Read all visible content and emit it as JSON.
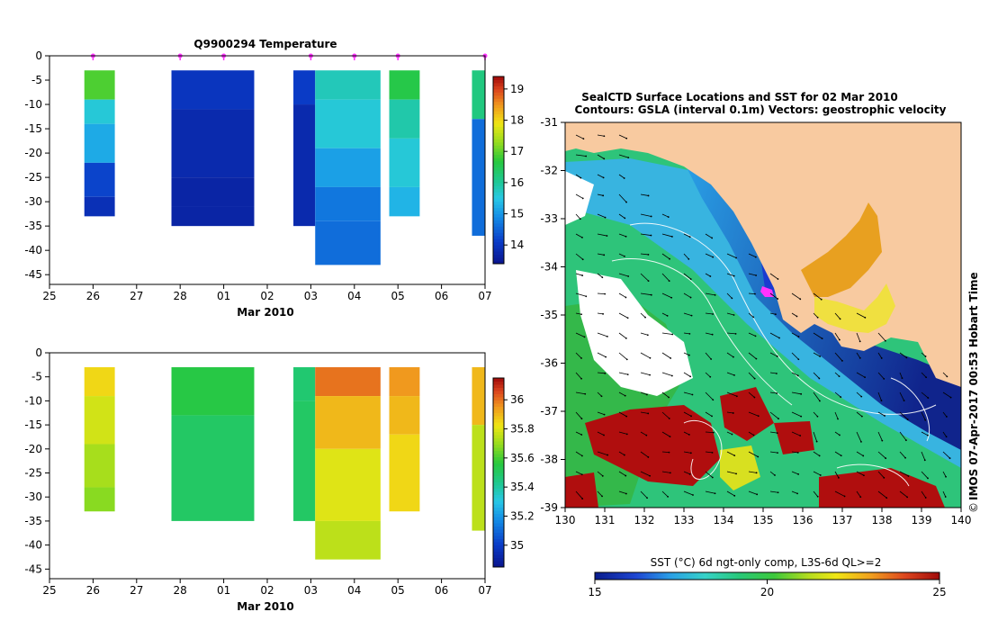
{
  "chart_data": [
    {
      "type": "heatmap",
      "title": "Q9900294  Temperature",
      "xlabel": "Mar 2010",
      "x_ticks": [
        "25",
        "26",
        "27",
        "28",
        "01",
        "02",
        "03",
        "04",
        "05",
        "06",
        "07"
      ],
      "y_ticks": [
        "0",
        "-5",
        "-10",
        "-15",
        "-20",
        "-25",
        "-30",
        "-35",
        "-40",
        "-45"
      ],
      "ylim": [
        -47,
        0
      ],
      "profile_marker_positions": [
        26.0,
        28.0,
        29.0,
        31.0,
        32.0,
        33.0,
        35.0
      ],
      "colorbar": {
        "min": 13.4,
        "max": 19.4,
        "ticks": [
          "14",
          "15",
          "16",
          "17",
          "18",
          "19"
        ]
      },
      "profiles": [
        {
          "x0": 25.8,
          "x1": 26.5,
          "layers": [
            [
              -3,
              -9,
              16.9
            ],
            [
              -9,
              -14,
              15.6
            ],
            [
              -14,
              -22,
              15.2
            ],
            [
              -22,
              -29,
              14.2
            ],
            [
              -29,
              -33,
              13.9
            ]
          ]
        },
        {
          "x0": 27.8,
          "x1": 29.7,
          "layers": [
            [
              -3,
              -11,
              14.0
            ],
            [
              -11,
              -25,
              13.8
            ],
            [
              -25,
              -31,
              13.7
            ],
            [
              -31,
              -35,
              13.7
            ]
          ]
        },
        {
          "x0": 30.6,
          "x1": 31.1,
          "layers": [
            [
              -3,
              -10,
              14.1
            ],
            [
              -10,
              -35,
              13.8
            ]
          ]
        },
        {
          "x0": 31.1,
          "x1": 32.6,
          "layers": [
            [
              -3,
              -9,
              15.8
            ],
            [
              -9,
              -19,
              15.6
            ],
            [
              -19,
              -27,
              15.1
            ],
            [
              -27,
              -34,
              14.7
            ],
            [
              -34,
              -43,
              14.6
            ]
          ]
        },
        {
          "x0": 32.8,
          "x1": 33.5,
          "layers": [
            [
              -3,
              -9,
              16.6
            ],
            [
              -9,
              -17,
              15.9
            ],
            [
              -17,
              -27,
              15.6
            ],
            [
              -27,
              -33,
              15.3
            ]
          ]
        },
        {
          "x0": 34.7,
          "x1": 35.0,
          "layers": [
            [
              -3,
              -13,
              16.2
            ],
            [
              -13,
              -37,
              14.6
            ]
          ]
        }
      ]
    },
    {
      "type": "heatmap",
      "xlabel": "Mar 2010",
      "x_ticks": [
        "25",
        "26",
        "27",
        "28",
        "01",
        "02",
        "03",
        "04",
        "05",
        "06",
        "07"
      ],
      "y_ticks": [
        "0",
        "-5",
        "-10",
        "-15",
        "-20",
        "-25",
        "-30",
        "-35",
        "-40",
        "-45"
      ],
      "ylim": [
        -47,
        0
      ],
      "colorbar": {
        "min": 34.85,
        "max": 36.15,
        "ticks": [
          "35",
          "35.2",
          "35.4",
          "35.6",
          "35.8",
          "36"
        ]
      },
      "profiles": [
        {
          "x0": 25.8,
          "x1": 26.5,
          "layers": [
            [
              -3,
              -9,
              35.85
            ],
            [
              -9,
              -19,
              35.78
            ],
            [
              -19,
              -28,
              35.72
            ],
            [
              -28,
              -33,
              35.68
            ]
          ]
        },
        {
          "x0": 27.8,
          "x1": 29.7,
          "layers": [
            [
              -3,
              -13,
              35.55
            ],
            [
              -13,
              -35,
              35.5
            ]
          ]
        },
        {
          "x0": 30.6,
          "x1": 31.1,
          "layers": [
            [
              -3,
              -10,
              35.48
            ],
            [
              -10,
              -35,
              35.5
            ]
          ]
        },
        {
          "x0": 31.1,
          "x1": 32.6,
          "layers": [
            [
              -3,
              -9,
              36.0
            ],
            [
              -9,
              -20,
              35.9
            ],
            [
              -20,
              -35,
              35.8
            ],
            [
              -35,
              -43,
              35.75
            ]
          ]
        },
        {
          "x0": 32.8,
          "x1": 33.5,
          "layers": [
            [
              -3,
              -9,
              35.95
            ],
            [
              -9,
              -17,
              35.9
            ],
            [
              -17,
              -33,
              35.85
            ]
          ]
        },
        {
          "x0": 34.7,
          "x1": 35.0,
          "layers": [
            [
              -3,
              -15,
              35.9
            ],
            [
              -15,
              -37,
              35.75
            ]
          ]
        }
      ]
    },
    {
      "type": "heatmap",
      "title_line1": "SealCTD Surface Locations and SST for 02 Mar 2010",
      "title_line2": "Contours: GSLA (interval 0.1m) Vectors: geostrophic velocity",
      "x_ticks": [
        "130",
        "131",
        "132",
        "133",
        "134",
        "135",
        "136",
        "137",
        "138",
        "139",
        "140"
      ],
      "y_ticks": [
        "-31",
        "-32",
        "-33",
        "-34",
        "-35",
        "-36",
        "-37",
        "-38",
        "-39"
      ],
      "xlim": [
        130,
        140
      ],
      "ylim": [
        -39,
        -31
      ],
      "colorbar": {
        "label": "SST (°C) 6d ngt-only comp, L3S-6d QL>=2",
        "min": 15,
        "max": 25,
        "ticks": [
          "15",
          "20",
          "25"
        ]
      },
      "seal_location": {
        "lon": 134.9,
        "lat": -34.6
      },
      "side_label": "IMOS 07-Apr-2017 00:53 Hobart Time",
      "copyright": "©",
      "colors": {
        "land": "#f8caa0",
        "missing": "#ffffff",
        "contour": "#ffffff",
        "marker": "#ff33ff"
      }
    }
  ]
}
